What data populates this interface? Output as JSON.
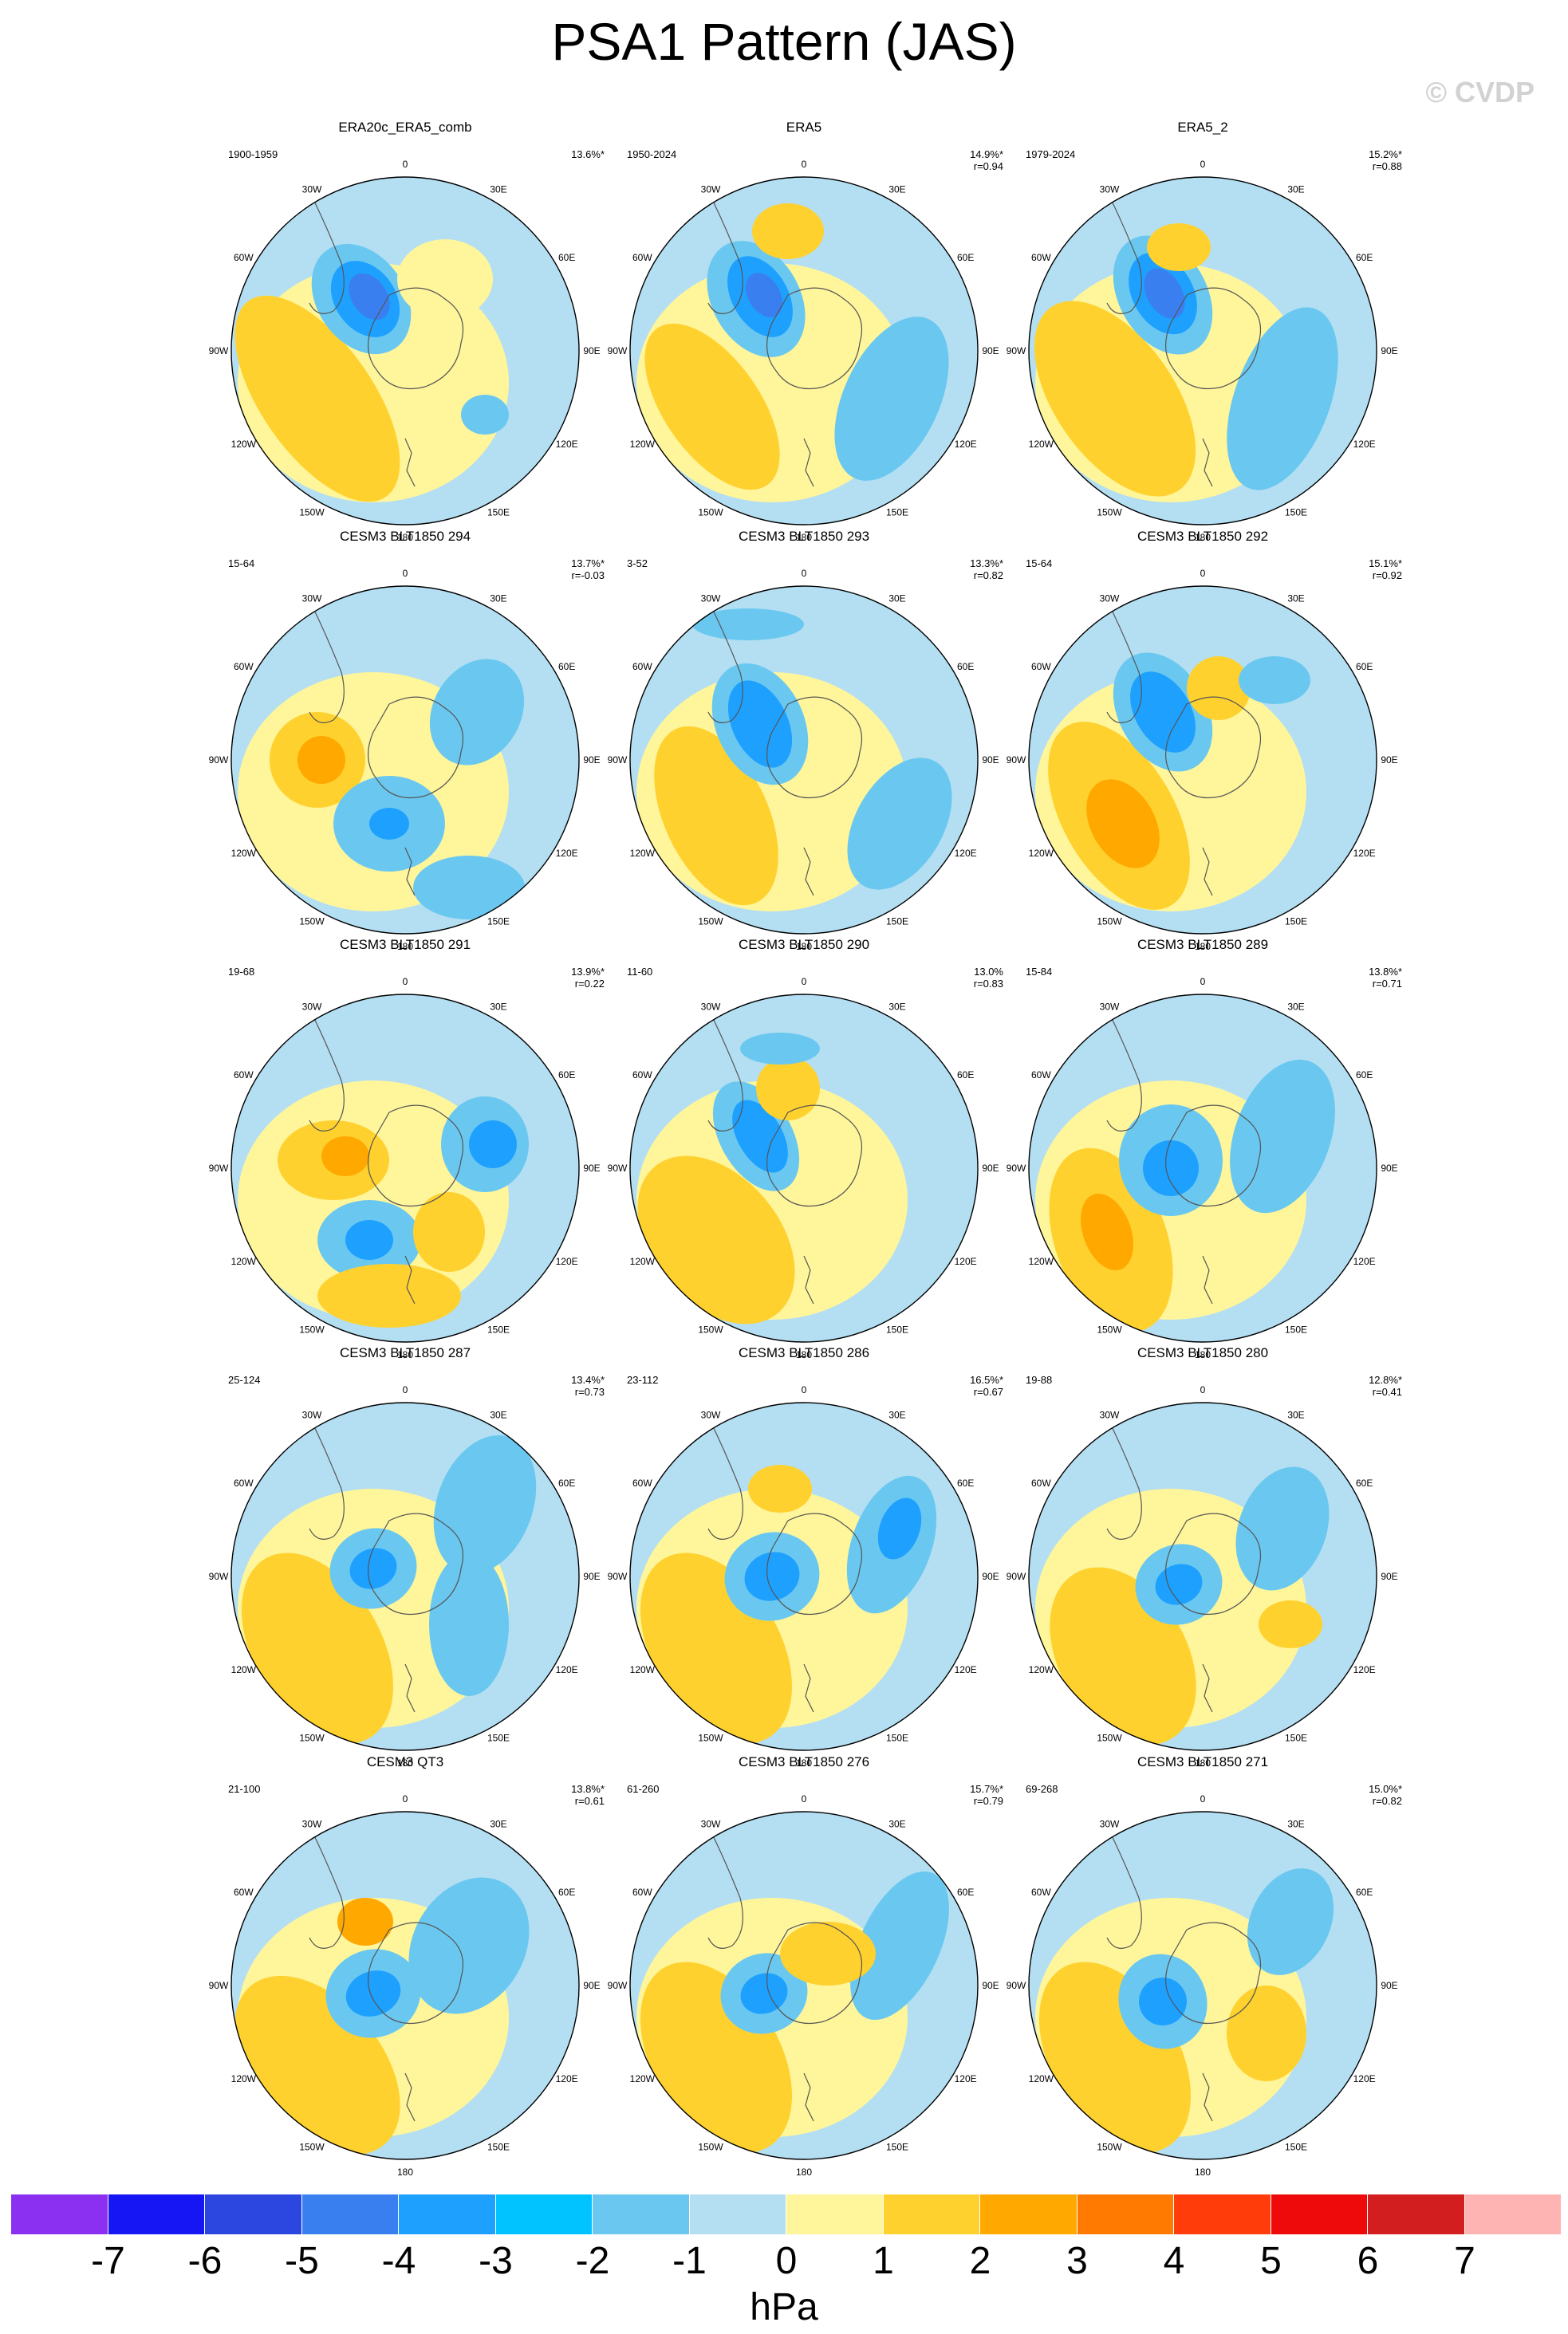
{
  "title": "PSA1 Pattern (JAS)",
  "copyright": "© CVDP",
  "longitude_labels": {
    "lon0": "0",
    "lon30e": "30E",
    "lon60e": "60E",
    "lon90e": "90E",
    "lon120e": "120E",
    "lon150e": "150E",
    "lon180": "180",
    "lon150w": "150W",
    "lon120w": "120W",
    "lon90w": "90W",
    "lon60w": "60W",
    "lon30w": "30W"
  },
  "panels": [
    {
      "title": "ERA20c_ERA5_comb",
      "period": "1900-1959",
      "pct": "13.6%*",
      "r": ""
    },
    {
      "title": "ERA5",
      "period": "1950-2024",
      "pct": "14.9%*",
      "r": "r=0.94"
    },
    {
      "title": "ERA5_2",
      "period": "1979-2024",
      "pct": "15.2%*",
      "r": "r=0.88"
    },
    {
      "title": "CESM3 BLT1850 294",
      "period": "15-64",
      "pct": "13.7%*",
      "r": "r=-0.03"
    },
    {
      "title": "CESM3 BLT1850 293",
      "period": "3-52",
      "pct": "13.3%*",
      "r": "r=0.82"
    },
    {
      "title": "CESM3 BLT1850 292",
      "period": "15-64",
      "pct": "15.1%*",
      "r": "r=0.92"
    },
    {
      "title": "CESM3 BLT1850 291",
      "period": "19-68",
      "pct": "13.9%*",
      "r": "r=0.22"
    },
    {
      "title": "CESM3 BLT1850 290",
      "period": "11-60",
      "pct": "13.0%",
      "r": "r=0.83"
    },
    {
      "title": "CESM3 BLT1850 289",
      "period": "15-84",
      "pct": "13.8%*",
      "r": "r=0.71"
    },
    {
      "title": "CESM3 BLT1850 287",
      "period": "25-124",
      "pct": "13.4%*",
      "r": "r=0.73"
    },
    {
      "title": "CESM3 BLT1850 286",
      "period": "23-112",
      "pct": "16.5%*",
      "r": "r=0.67"
    },
    {
      "title": "CESM3 BLT1850 280",
      "period": "19-88",
      "pct": "12.8%*",
      "r": "r=0.41"
    },
    {
      "title": "CESM3 QT3",
      "period": "21-100",
      "pct": "13.8%*",
      "r": "r=0.61"
    },
    {
      "title": "CESM3 BLT1850 276",
      "period": "61-260",
      "pct": "15.7%*",
      "r": "r=0.79"
    },
    {
      "title": "CESM3 BLT1850 271",
      "period": "69-268",
      "pct": "15.0%*",
      "r": "r=0.82"
    }
  ],
  "colorbar": {
    "units": "hPa",
    "labels": [
      "-7",
      "-6",
      "-5",
      "-4",
      "-3",
      "-2",
      "-1",
      "0",
      "1",
      "2",
      "3",
      "4",
      "5",
      "6",
      "7"
    ],
    "colors": [
      "#8b2ff0",
      "#1616f5",
      "#2c46e0",
      "#3a7ff0",
      "#1ea0ff",
      "#00c3ff",
      "#6ac8f0",
      "#b4dff2",
      "#fff59b",
      "#ffd12e",
      "#ffa800",
      "#ff7a00",
      "#ff3c0a",
      "#ee0a0a",
      "#d21e1e",
      "#ffb4b4"
    ]
  }
}
